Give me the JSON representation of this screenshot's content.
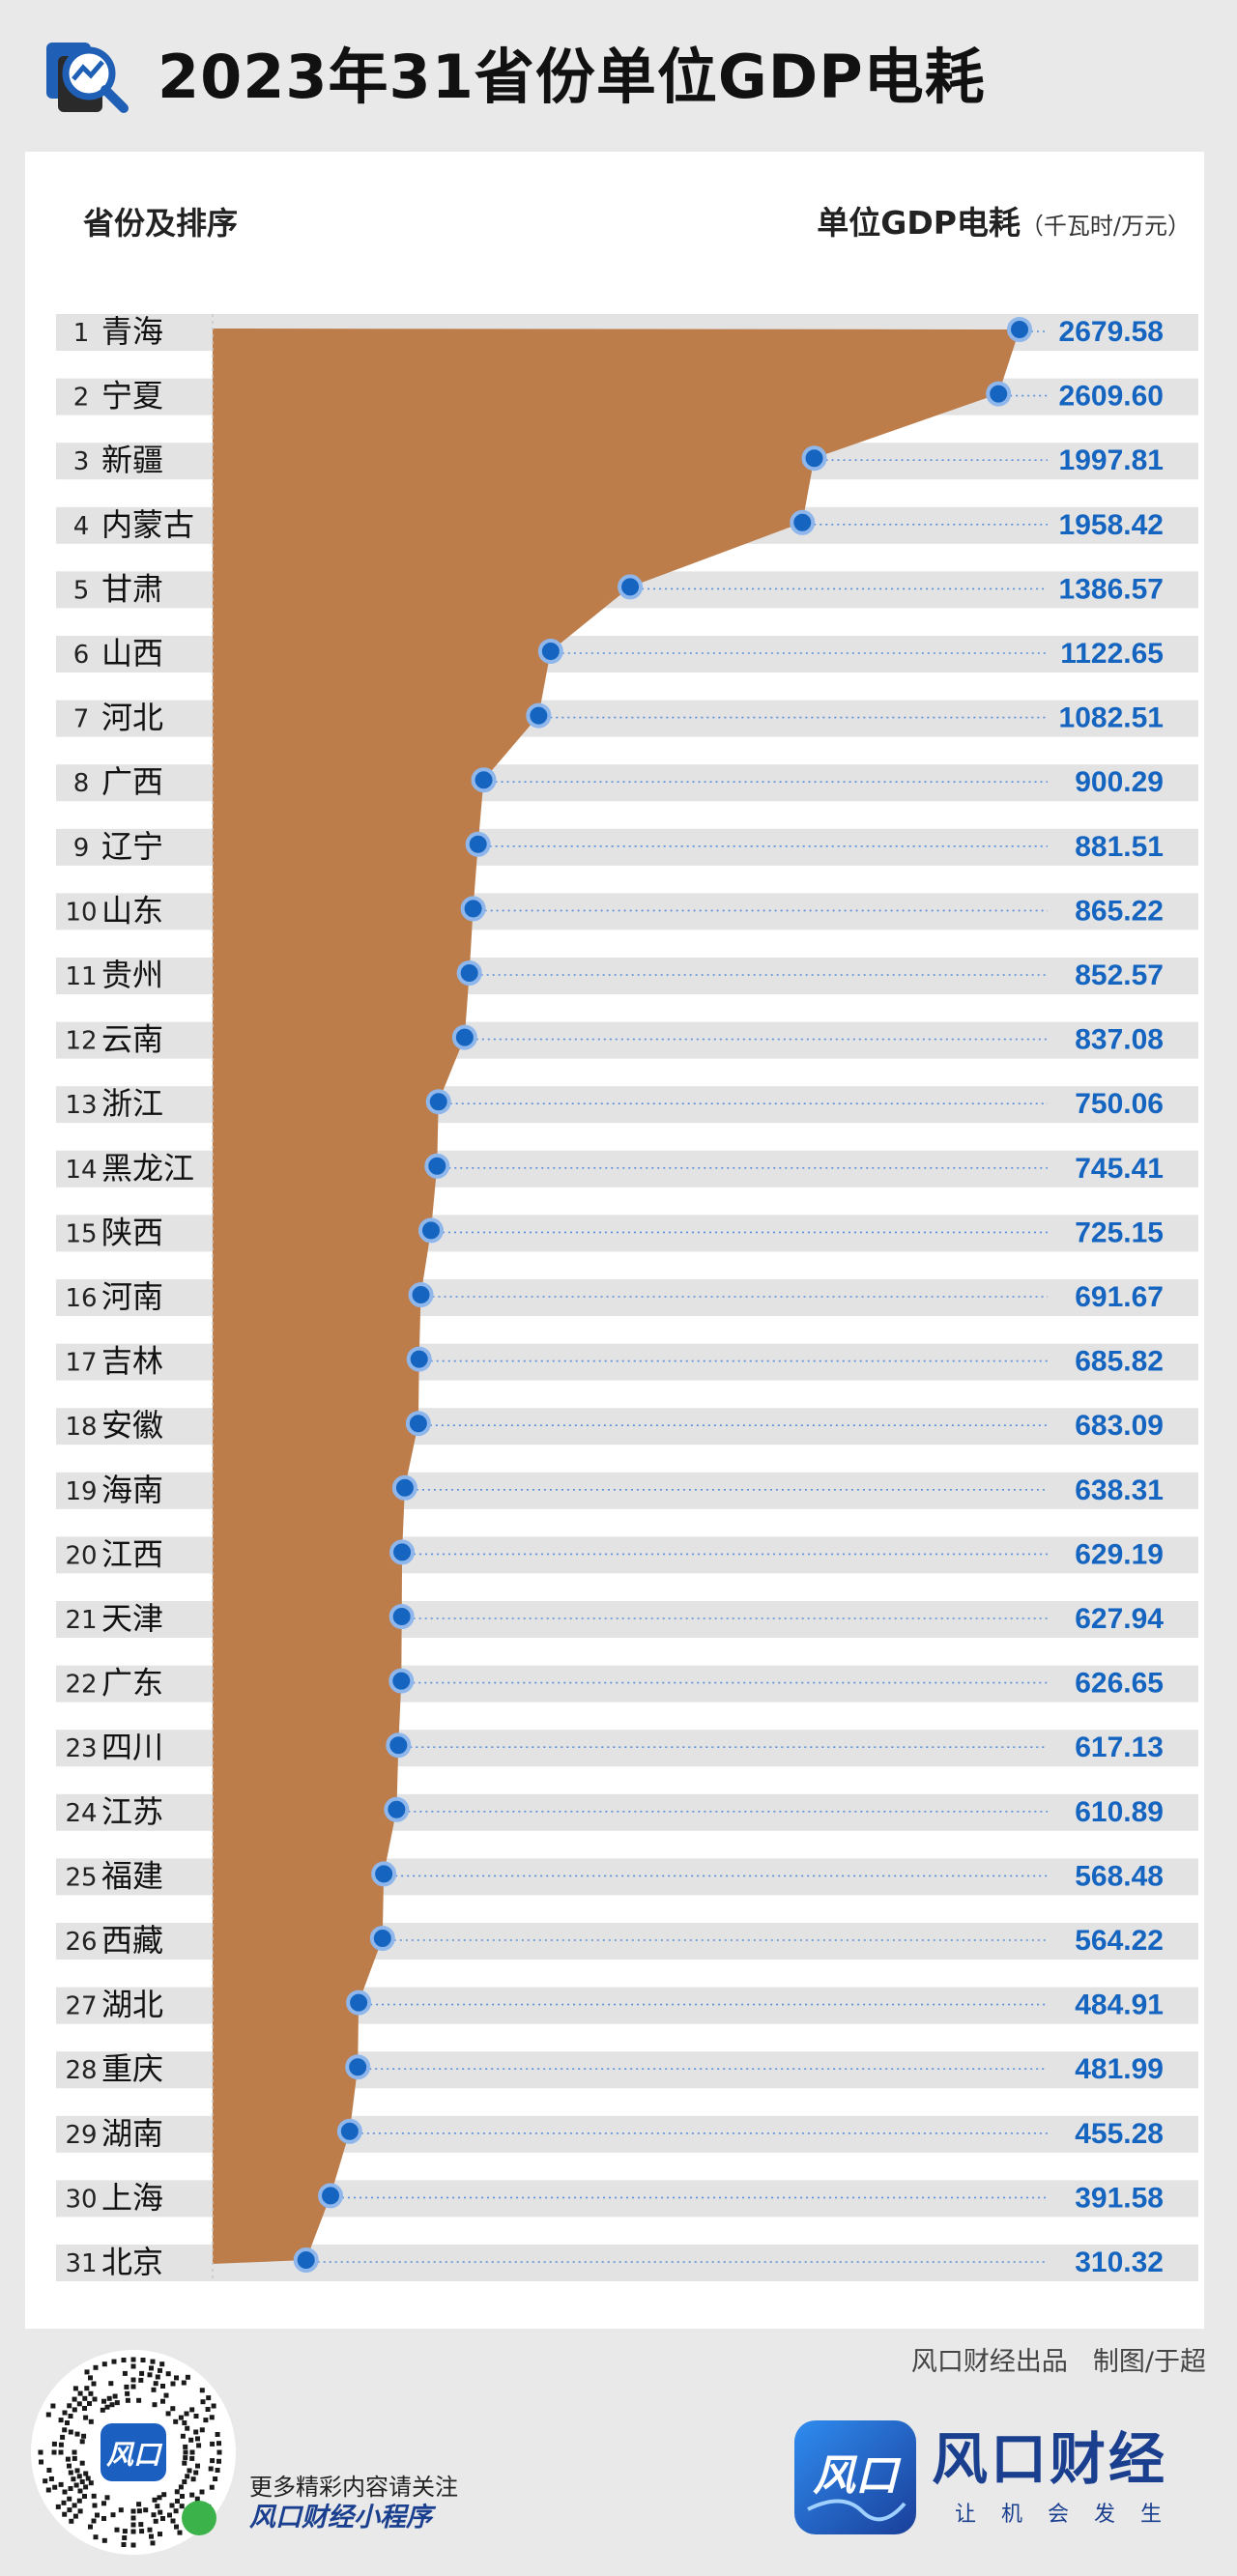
{
  "title": "2023年31省份单位GDP电耗",
  "chart_data": {
    "type": "bar",
    "title": "2023年31省份单位GDP电耗",
    "left_header": "省份及排序",
    "right_header": "单位GDP电耗",
    "unit": "（千瓦时/万元）",
    "fill_color": "#bd7d4b",
    "point_color": "#1565c0",
    "value_color": "#1565c0",
    "ranks": [
      1,
      2,
      3,
      4,
      5,
      6,
      7,
      8,
      9,
      10,
      11,
      12,
      13,
      14,
      15,
      16,
      17,
      18,
      19,
      20,
      21,
      22,
      23,
      24,
      25,
      26,
      27,
      28,
      29,
      30,
      31
    ],
    "categories": [
      "青海",
      "宁夏",
      "新疆",
      "内蒙古",
      "甘肃",
      "山西",
      "河北",
      "广西",
      "辽宁",
      "山东",
      "贵州",
      "云南",
      "浙江",
      "黑龙江",
      "陕西",
      "河南",
      "吉林",
      "安徽",
      "海南",
      "江西",
      "天津",
      "广东",
      "四川",
      "江苏",
      "福建",
      "西藏",
      "湖北",
      "重庆",
      "湖南",
      "上海",
      "北京"
    ],
    "values": [
      2679.58,
      2609.6,
      1997.81,
      1958.42,
      1386.57,
      1122.65,
      1082.51,
      900.29,
      881.51,
      865.22,
      852.57,
      837.08,
      750.06,
      745.41,
      725.15,
      691.67,
      685.82,
      683.09,
      638.31,
      629.19,
      627.94,
      626.65,
      617.13,
      610.89,
      568.48,
      564.22,
      484.91,
      481.99,
      455.28,
      391.58,
      310.32
    ],
    "value_labels": [
      "2679.58",
      "2609.60",
      "1997.81",
      "1958.42",
      "1386.57",
      "1122.65",
      "1082.51",
      "900.29",
      "881.51",
      "865.22",
      "852.57",
      "837.08",
      "750.06",
      "745.41",
      "725.15",
      "691.67",
      "685.82",
      "683.09",
      "638.31",
      "629.19",
      "627.94",
      "626.65",
      "617.13",
      "610.89",
      "568.48",
      "564.22",
      "484.91",
      "481.99",
      "455.28",
      "391.58",
      "310.32"
    ]
  },
  "footer": {
    "source": "风口财经出品",
    "author": "制图/于超",
    "qr_line1": "更多精彩内容请关注",
    "qr_line2": "风口财经小程序",
    "qr_badge": "风口",
    "brand_badge": "风口",
    "brand_name": "风口财经",
    "slogan": "让机会发生"
  }
}
